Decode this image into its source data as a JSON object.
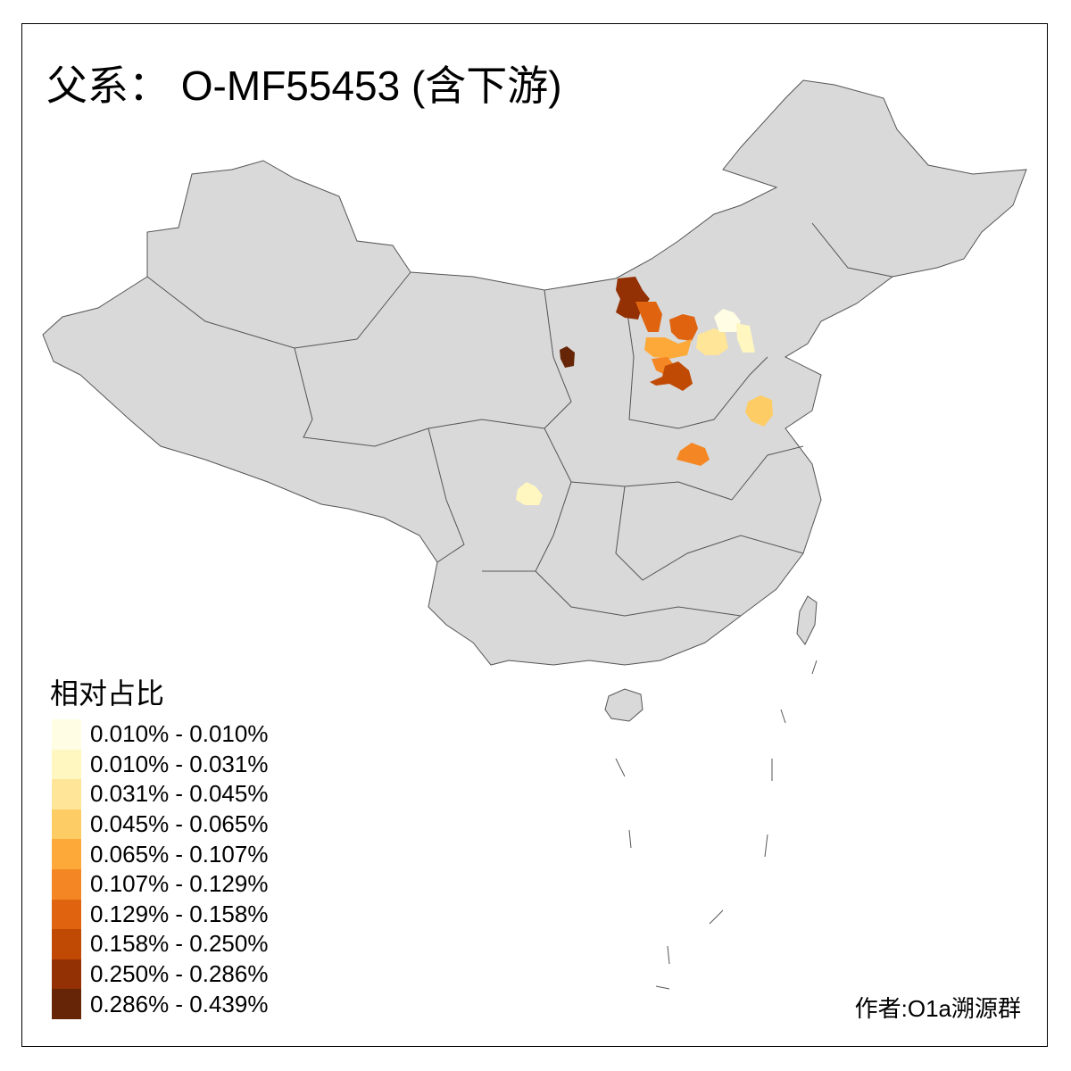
{
  "title": "父系： O-MF55453 (含下游)",
  "legend": {
    "title": "相对占比",
    "items": [
      {
        "label": "0.010% - 0.010%",
        "color": "#FFFDE4"
      },
      {
        "label": "0.010% - 0.031%",
        "color": "#FFF6C0"
      },
      {
        "label": "0.031% - 0.045%",
        "color": "#FEE597"
      },
      {
        "label": "0.045% - 0.065%",
        "color": "#FECC64"
      },
      {
        "label": "0.065% - 0.107%",
        "color": "#FDA93A"
      },
      {
        "label": "0.107% - 0.129%",
        "color": "#F48723"
      },
      {
        "label": "0.129% - 0.158%",
        "color": "#E0640F"
      },
      {
        "label": "0.158% - 0.250%",
        "color": "#C04A04"
      },
      {
        "label": "0.250% - 0.286%",
        "color": "#933004"
      },
      {
        "label": "0.286% - 0.439%",
        "color": "#662506"
      }
    ]
  },
  "map": {
    "base_color": "#D9D9D9",
    "border_color": "#555555"
  },
  "credit": "作者:O1a溯源群"
}
